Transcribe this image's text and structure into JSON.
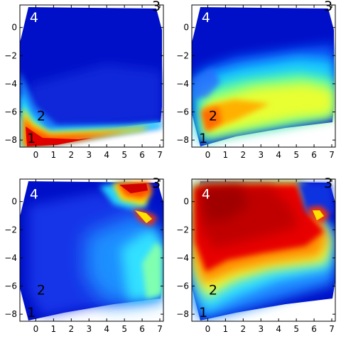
{
  "chart_data": [
    {
      "type": "heatmap",
      "panel": "top-left",
      "title": "",
      "xlabel": "",
      "ylabel": "",
      "xlim": [
        -0.9,
        7.2
      ],
      "ylim": [
        -8.5,
        1.6
      ],
      "x_ticks": [
        "0",
        "1",
        "2",
        "3",
        "4",
        "5",
        "6",
        "7"
      ],
      "y_ticks": [
        "0",
        "−2",
        "−4",
        "−6",
        "−8"
      ],
      "colormap": "jet",
      "site_labels": [
        {
          "text": "4",
          "x": -0.1,
          "y": 0.4,
          "color": "#ffffff"
        },
        {
          "text": "3",
          "x": 6.8,
          "y": 1.2,
          "color": "#000000"
        },
        {
          "text": "2",
          "x": 0.3,
          "y": -6.6,
          "color": "#000000"
        },
        {
          "text": "1",
          "x": -0.25,
          "y": -8.2,
          "color": "#000000"
        }
      ]
    },
    {
      "type": "heatmap",
      "panel": "top-right",
      "title": "",
      "xlabel": "",
      "ylabel": "",
      "xlim": [
        -0.9,
        7.2
      ],
      "ylim": [
        -8.5,
        1.6
      ],
      "x_ticks": [
        "0",
        "1",
        "2",
        "3",
        "4",
        "5",
        "6",
        "7"
      ],
      "y_ticks": [
        "0",
        "−2",
        "−4",
        "−6",
        "−8"
      ],
      "colormap": "jet",
      "site_labels": [
        {
          "text": "4",
          "x": -0.1,
          "y": 0.4,
          "color": "#ffffff"
        },
        {
          "text": "3",
          "x": 6.8,
          "y": 1.2,
          "color": "#000000"
        },
        {
          "text": "2",
          "x": 0.3,
          "y": -6.6,
          "color": "#000000"
        },
        {
          "text": "1",
          "x": -0.25,
          "y": -8.2,
          "color": "#000000"
        }
      ]
    },
    {
      "type": "heatmap",
      "panel": "bottom-left",
      "title": "",
      "xlabel": "",
      "ylabel": "",
      "xlim": [
        -0.9,
        7.2
      ],
      "ylim": [
        -8.5,
        1.6
      ],
      "x_ticks": [
        "0",
        "1",
        "2",
        "3",
        "4",
        "5",
        "6",
        "7"
      ],
      "y_ticks": [
        "0",
        "−2",
        "−4",
        "−6",
        "−8"
      ],
      "colormap": "jet",
      "site_labels": [
        {
          "text": "4",
          "x": -0.1,
          "y": 0.2,
          "color": "#ffffff"
        },
        {
          "text": "3",
          "x": 6.8,
          "y": 1.0,
          "color": "#000000"
        },
        {
          "text": "2",
          "x": 0.3,
          "y": -6.6,
          "color": "#000000"
        },
        {
          "text": "1",
          "x": -0.25,
          "y": -8.2,
          "color": "#000000"
        }
      ]
    },
    {
      "type": "heatmap",
      "panel": "bottom-right",
      "title": "",
      "xlabel": "",
      "ylabel": "",
      "xlim": [
        -0.9,
        7.2
      ],
      "ylim": [
        -8.5,
        1.6
      ],
      "x_ticks": [
        "0",
        "1",
        "2",
        "3",
        "4",
        "5",
        "6",
        "7"
      ],
      "y_ticks": [
        "0",
        "−2",
        "−4",
        "−6",
        "−8"
      ],
      "colormap": "jet",
      "site_labels": [
        {
          "text": "4",
          "x": -0.1,
          "y": 0.2,
          "color": "#ffffff"
        },
        {
          "text": "3",
          "x": 6.8,
          "y": 1.0,
          "color": "#000000"
        },
        {
          "text": "2",
          "x": 0.3,
          "y": -6.6,
          "color": "#000000"
        },
        {
          "text": "1",
          "x": -0.25,
          "y": -8.2,
          "color": "#000000"
        }
      ]
    }
  ]
}
